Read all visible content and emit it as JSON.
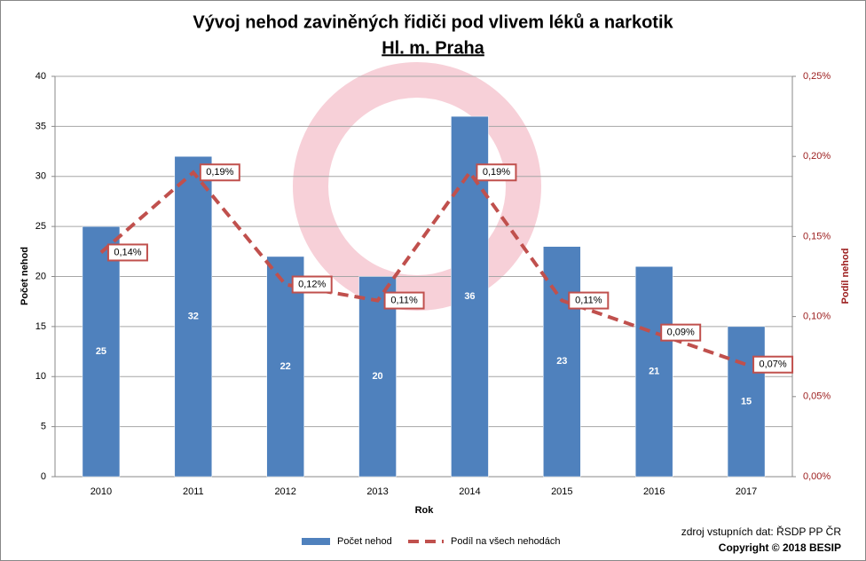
{
  "chart_data": {
    "type": "bar",
    "title": "Vývoj nehod zaviněných řidiči pod vlivem léků a narkotik",
    "subtitle": "Hl. m. Praha",
    "x_label": "Rok",
    "y_label": "Počet nehod",
    "y2_label": "Podíl nehod",
    "categories": [
      "2010",
      "2011",
      "2012",
      "2013",
      "2014",
      "2015",
      "2016",
      "2017"
    ],
    "series": [
      {
        "name": "Počet nehod",
        "type": "bar",
        "color": "#4f81bd",
        "values": [
          25,
          32,
          22,
          20,
          36,
          23,
          21,
          15
        ]
      },
      {
        "name": "Podíl na všech nehodách",
        "type": "line",
        "axis": "y2",
        "color": "#c0504d",
        "values": [
          0.14,
          0.19,
          0.12,
          0.11,
          0.19,
          0.11,
          0.09,
          0.07
        ],
        "value_labels": [
          "0,14%",
          "0,19%",
          "0,12%",
          "0,11%",
          "0,19%",
          "0,11%",
          "0,09%",
          "0,07%"
        ]
      }
    ],
    "ylim": [
      0,
      40
    ],
    "yticks": [
      0,
      5,
      10,
      15,
      20,
      25,
      30,
      35,
      40
    ],
    "y2lim": [
      0,
      0.25
    ],
    "y2ticks": [
      {
        "value": 0,
        "label": "0,00%"
      },
      {
        "value": 0.05,
        "label": "0,05%"
      },
      {
        "value": 0.1,
        "label": "0,10%"
      },
      {
        "value": 0.15,
        "label": "0,15%"
      },
      {
        "value": 0.2,
        "label": "0,20%"
      },
      {
        "value": 0.25,
        "label": "0,25%"
      }
    ],
    "grid": true,
    "legend": "bottom",
    "source": "zdroj vstupních dat: ŘSDP PP ČR",
    "copyright": "Copyright © 2018 BESIP"
  }
}
